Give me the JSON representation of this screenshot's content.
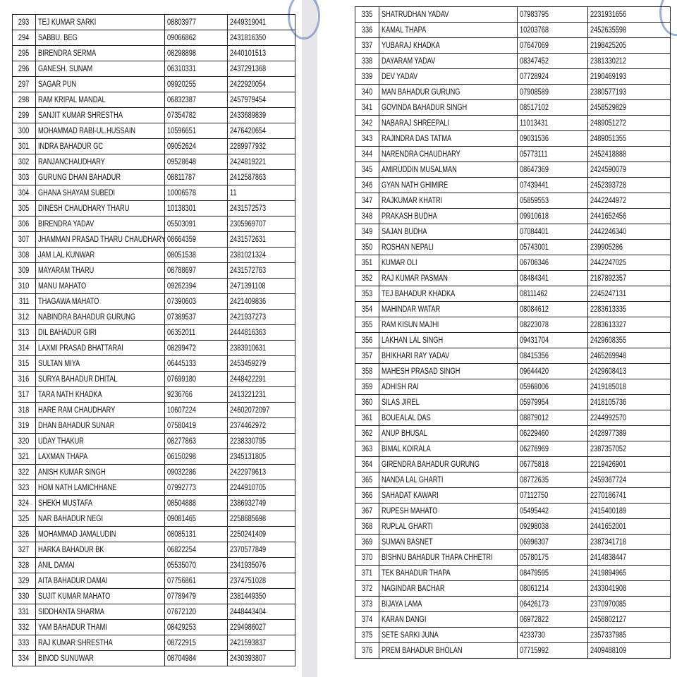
{
  "tables": [
    {
      "rows": [
        [
          "293",
          "TEJ KUMAR SARKI",
          "08803977",
          "2449319041"
        ],
        [
          "294",
          "SABBU. BEG",
          "09066862",
          "2431816350"
        ],
        [
          "295",
          "BIRENDRA SERMA",
          "08298898",
          "2440101513"
        ],
        [
          "296",
          "GANESH. SUNAM",
          "06310331",
          "2437291368"
        ],
        [
          "297",
          "SAGAR PUN",
          "09920255",
          "2422920054"
        ],
        [
          "298",
          "RAM KRIPAL MANDAL",
          "06832387",
          "2457979454"
        ],
        [
          "299",
          "SANJIT KUMAR SHRESTHA",
          "07354782",
          "2433689839"
        ],
        [
          "300",
          "MOHAMMAD RABI-UL.HUSSAIN",
          "10596651",
          "2476420654"
        ],
        [
          "301",
          "INDRA BAHADUR GC",
          "09052624",
          "2289977932"
        ],
        [
          "302",
          "RANJANCHAUDHARY",
          "09528648",
          "2424819221"
        ],
        [
          "303",
          "GURUNG DHAN BAHADUR",
          "08811787",
          "2412587863"
        ],
        [
          "304",
          "GHANA SHAYAM SUBEDI",
          "10006578",
          "11"
        ],
        [
          "305",
          "DINESH CHAUDHARY THARU",
          "10138301",
          "2431572573"
        ],
        [
          "306",
          "BIRENDRA YADAV",
          "05503091",
          "2305969707"
        ],
        [
          "307",
          "JHAMMAN PRASAD THARU CHAUDHARY",
          "08664359",
          "2431572631"
        ],
        [
          "308",
          "JAM LAL KUNWAR",
          "08051538",
          "2381021324"
        ],
        [
          "309",
          "MAYARAM THARU",
          "08788697",
          "2431572763"
        ],
        [
          "310",
          "MANU MAHATO",
          "09262394",
          "2471391108"
        ],
        [
          "311",
          "THAGAWA MAHATO",
          "07390603",
          "2421409836"
        ],
        [
          "312",
          "NABINDRA BAHADUR GURUNG",
          "07389537",
          "2421937273"
        ],
        [
          "313",
          "DIL BAHADUR GIRI",
          "06352011",
          "2444816363"
        ],
        [
          "314",
          "LAXMI PRASAD BHATTARAI",
          "08299472",
          "2383910631"
        ],
        [
          "315",
          "SULTAN MIYA",
          "06445133",
          "2453459279"
        ],
        [
          "316",
          "SURYA BAHADUR DHITAL",
          "07699180",
          "2448422291"
        ],
        [
          "317",
          "TARA NATH KHADKA",
          "9236766",
          "2413221231"
        ],
        [
          "318",
          "HARE RAM CHAUDHARY",
          "10607224",
          "24602072097"
        ],
        [
          "319",
          "DHAN BAHADUR SUNAR",
          "07580419",
          "2374462972"
        ],
        [
          "320",
          "UDAY THAKUR",
          "08277863",
          "2238330795"
        ],
        [
          "321",
          "LAXMAN THAPA",
          "06150298",
          "2345131805"
        ],
        [
          "322",
          "ANISH KUMAR SINGH",
          "09032286",
          "2422979613"
        ],
        [
          "323",
          "HOM NATH LAMICHHANE",
          "07992773",
          "2244910705"
        ],
        [
          "324",
          "SHEKH MUSTAFA",
          "08504888",
          "2386932749"
        ],
        [
          "325",
          "NAR BAHADUR NEGI",
          "09081465",
          "2258685698"
        ],
        [
          "326",
          "MOHAMMAD JAMALUDIN",
          "08085131",
          "2250241409"
        ],
        [
          "327",
          "HARKA BAHADUR BK",
          "06822254",
          "2370577849"
        ],
        [
          "328",
          "ANIL DAMAI",
          "05535070",
          "2341935076"
        ],
        [
          "329",
          "AITA BAHADUR DAMAI",
          "07756861",
          "2374751028"
        ],
        [
          "330",
          "SUJIT KUMAR MAHATO",
          "07789479",
          "2381449350"
        ],
        [
          "331",
          "SIDDHANTA SHARMA",
          "07672120",
          "2448443404"
        ],
        [
          "332",
          "YAM BAHADUR THAMI",
          "08429253",
          "2294986027"
        ],
        [
          "333",
          "RAJ KUMAR SHRESTHA",
          "08722915",
          "2421593837"
        ],
        [
          "334",
          "BINOD SUNUWAR",
          "08704984",
          "2430393807"
        ]
      ]
    },
    {
      "rows": [
        [
          "335",
          "SHATRUDHAN YADAV",
          "07983795",
          "2231931656"
        ],
        [
          "336",
          "KAMAL THAPA",
          "10203768",
          "2452635598"
        ],
        [
          "337",
          "YUBARAJ KHADKA",
          "07647069",
          "2198425205"
        ],
        [
          "338",
          "DAYARAM YADAV",
          "08347452",
          "2381330212"
        ],
        [
          "339",
          "DEV YADAV",
          "07728924",
          "2190469193"
        ],
        [
          "340",
          "MAN BAHADUR GURUNG",
          "07908589",
          "2380577193"
        ],
        [
          "341",
          "GOVINDA BAHADUR SINGH",
          "08517102",
          "2458529829"
        ],
        [
          "342",
          "NABARAJ SHREEPALI",
          "11013431",
          "2489051272"
        ],
        [
          "343",
          "RAJINDRA DAS TATMA",
          "09031536",
          "2489051355"
        ],
        [
          "344",
          "NARENDRA CHAUDHARY",
          "05773111",
          "2452418888"
        ],
        [
          "345",
          "AMIRUDDIN MUSALMAN",
          "08647369",
          "2424590079"
        ],
        [
          "346",
          "GYAN NATH GHIMIRE",
          "07439441",
          "2452393728"
        ],
        [
          "347",
          "RAJKUMAR KHATRI",
          "05859553",
          "2442244972"
        ],
        [
          "348",
          "PRAKASH BUDHA",
          "09910618",
          "2441652456"
        ],
        [
          "349",
          "SAJAN BUDHA",
          "07084401",
          "2442246340"
        ],
        [
          "350",
          "ROSHAN NEPALI",
          "05743001",
          "239905286"
        ],
        [
          "351",
          "KUMAR OLI",
          "06706346",
          "2442247025"
        ],
        [
          "352",
          "RAJ KUMAR PASMAN",
          "08484341",
          "2187892357"
        ],
        [
          "353",
          "TEJ BAHADUR KHADKA",
          "08111462",
          "2245247131"
        ],
        [
          "354",
          "MAHINDAR WATAR",
          "08084612",
          "2283613335"
        ],
        [
          "355",
          "RAM KISUN MAJHI",
          "08223078",
          "2283613327"
        ],
        [
          "356",
          "LAKHAN LAL SINGH",
          "09431704",
          "2429608355"
        ],
        [
          "357",
          "BHIKHARI RAY YADAV",
          "08415356",
          "2465269948"
        ],
        [
          "358",
          "MAHESH PRASAD SINGH",
          "09644420",
          "2429608413"
        ],
        [
          "359",
          "ADHISH RAI",
          "05968006",
          "2419185018"
        ],
        [
          "360",
          "SILAS JIREL",
          "05979954",
          "2418105736"
        ],
        [
          "361",
          "BOUEALAL DAS",
          "08879012",
          "2244992570"
        ],
        [
          "362",
          "ANUP BHUSAL",
          "06229460",
          "2428977389"
        ],
        [
          "363",
          "BIMAL KOIRALA",
          "06276969",
          "2387357052"
        ],
        [
          "364",
          "GIRENDRA BAHADUR GURUNG",
          "06775818",
          "2219426901"
        ],
        [
          "365",
          "NANDA LAL GHARTI",
          "08772635",
          "2459367724"
        ],
        [
          "366",
          "SAHADAT KAWARI",
          "07112750",
          "2270186741"
        ],
        [
          "367",
          "RUPESH MAHATO",
          "05495442",
          "2415400189"
        ],
        [
          "368",
          "RUPLAL GHARTI",
          "09298038",
          "2441652001"
        ],
        [
          "369",
          "SUMAN BASNET",
          "06996307",
          "2387341718"
        ],
        [
          "370",
          "BISHNU BAHADUR THAPA CHHETRI",
          "05780175",
          "2414838447"
        ],
        [
          "371",
          "TEK BAHADUR THAPA",
          "08479595",
          "2419894965"
        ],
        [
          "372",
          "NAGINDAR BACHAR",
          "08061214",
          "2433041908"
        ],
        [
          "373",
          "BIJAYA LAMA",
          "06426173",
          "2370970085"
        ],
        [
          "374",
          "KARAN DANGI",
          "06972822",
          "2458802127"
        ],
        [
          "375",
          "SETE SARKI JUNA",
          "4233730",
          "2357337985"
        ],
        [
          "376",
          "PREM BAHADUR BHOLAN",
          "07715992",
          "2409488109"
        ]
      ]
    }
  ]
}
